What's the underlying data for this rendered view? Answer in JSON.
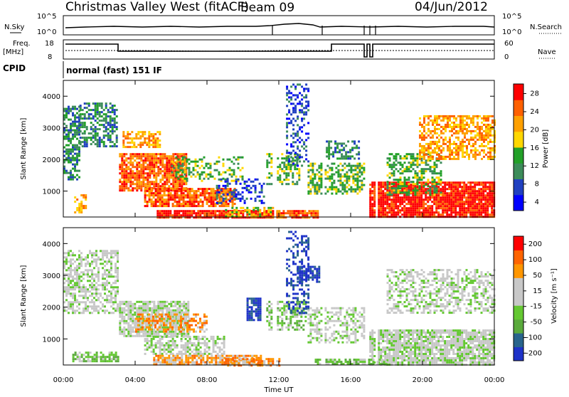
{
  "header": {
    "title": "Christmas Valley West (fitACF)",
    "beam": "Beam 09",
    "date": "04/Jun/2012"
  },
  "strips": {
    "nsky_label": "N.Sky",
    "nsky_ticks": [
      "10^5",
      "10^0"
    ],
    "nsearch_label": "N.Search",
    "nsearch_ticks": [
      "10^5",
      "10^0"
    ],
    "freq_label": "Freq.",
    "freq_units": "[MHz]",
    "freq_ticks": [
      "18",
      "8"
    ],
    "nave_label": "Nave",
    "nave_ticks": [
      "60",
      "0"
    ],
    "cpid_label": "CPID",
    "cpid_value": "normal (fast) 151 IF"
  },
  "chart_data": [
    {
      "type": "heatmap",
      "name": "power",
      "ylabel": "Slant Range [km]",
      "yticks": [
        "1000",
        "2000",
        "3000",
        "4000"
      ],
      "ylim": [
        180,
        4500
      ],
      "colorbar_label": "Power [dB]",
      "colorbar_ticks": [
        "28",
        "24",
        "20",
        "16",
        "12",
        "8",
        "4"
      ],
      "colors": [
        "#0000ff",
        "#2040c0",
        "#3c8c5a",
        "#22a028",
        "#ffd700",
        "#ffa000",
        "#ff6000",
        "#ff0000"
      ]
    },
    {
      "type": "heatmap",
      "name": "velocity",
      "ylabel": "Slant Range [km]",
      "yticks": [
        "1000",
        "2000",
        "3000",
        "4000"
      ],
      "ylim": [
        180,
        4500
      ],
      "colorbar_label": "Velocity [m s⁻¹]",
      "colorbar_ticks": [
        "200",
        "100",
        "50",
        "15",
        "-15",
        "-50",
        "-100",
        "-200"
      ],
      "colors": [
        "#1e32c8",
        "#28648c",
        "#5aaa3c",
        "#64c832",
        "#c8c8c8",
        "#c8c8c8",
        "#ff9600",
        "#ff6400",
        "#ff0000"
      ],
      "xlabel": "Time UT",
      "xticks": [
        "00:00",
        "04:00",
        "08:00",
        "12:00",
        "16:00",
        "20:00",
        "00:00"
      ]
    }
  ]
}
